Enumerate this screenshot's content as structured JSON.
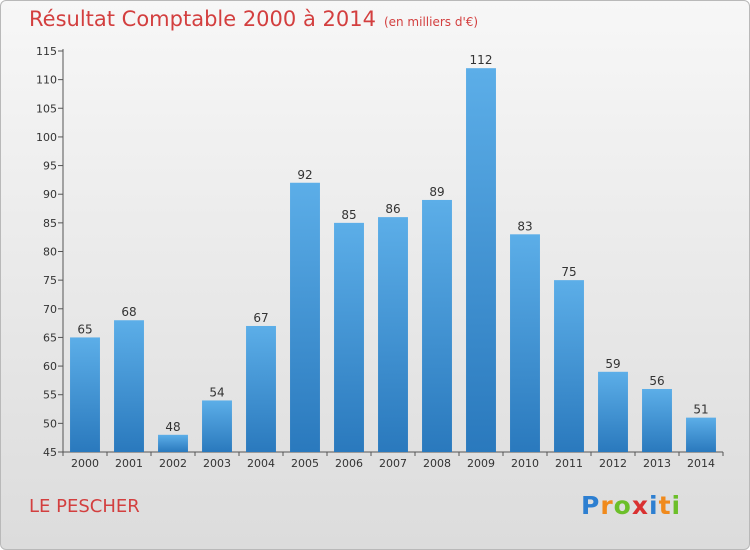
{
  "title": "Résultat Comptable 2000 à 2014",
  "unit_note": "(en milliers d'€)",
  "commune": "LE PESCHER",
  "logo": {
    "letters": [
      "P",
      "r",
      "o",
      "x",
      "i",
      "t",
      "i"
    ],
    "colors": [
      "#2d7fd1",
      "#f08a1c",
      "#6cbf2a",
      "#d93030",
      "#2d7fd1",
      "#f08a1c",
      "#6cbf2a"
    ]
  },
  "colors": {
    "bar_top": "#5caee8",
    "bar_bottom": "#2a79bd",
    "title": "#d33f3f"
  },
  "chart_data": {
    "type": "bar",
    "title": "Résultat Comptable 2000 à 2014",
    "xlabel": "",
    "ylabel": "(en milliers d'€)",
    "categories": [
      "2000",
      "2001",
      "2002",
      "2003",
      "2004",
      "2005",
      "2006",
      "2007",
      "2008",
      "2009",
      "2010",
      "2011",
      "2012",
      "2013",
      "2014"
    ],
    "values": [
      65,
      68,
      48,
      54,
      67,
      92,
      85,
      86,
      89,
      112,
      83,
      75,
      59,
      56,
      51
    ],
    "ylim": [
      45,
      115
    ],
    "yticks": [
      45,
      50,
      55,
      60,
      65,
      70,
      75,
      80,
      85,
      90,
      95,
      100,
      105,
      110,
      115
    ],
    "grid": false
  }
}
